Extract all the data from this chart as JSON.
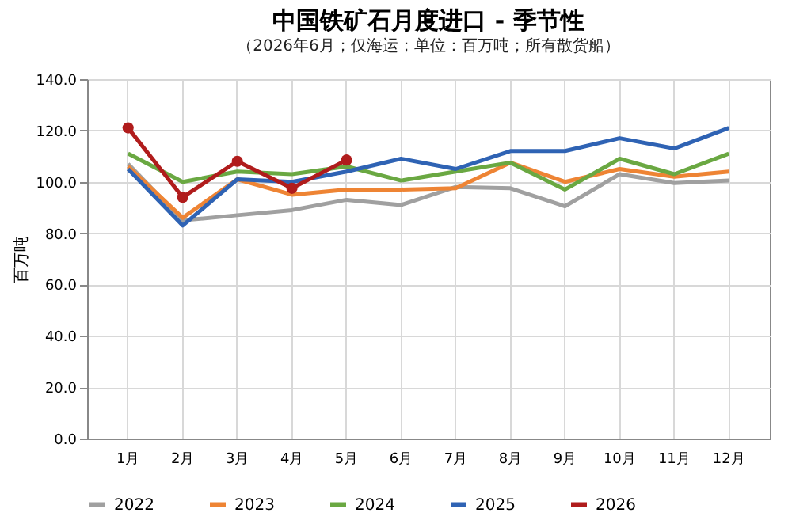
{
  "chart_data": {
    "type": "line",
    "title": "中国铁矿石月度进口 - 季节性",
    "subtitle": "（2026年6月；仅海运；单位：百万吨；所有散货船）",
    "ylabel": "百万吨",
    "categories": [
      "1月",
      "2月",
      "3月",
      "4月",
      "5月",
      "6月",
      "7月",
      "8月",
      "9月",
      "10月",
      "11月",
      "12月"
    ],
    "ylim": [
      0,
      140
    ],
    "yticks": [
      {
        "value": 0,
        "label": "0.0"
      },
      {
        "value": 20,
        "label": "20.0"
      },
      {
        "value": 40,
        "label": "40.0"
      },
      {
        "value": 60,
        "label": "60.0"
      },
      {
        "value": 80,
        "label": "80.0"
      },
      {
        "value": 100,
        "label": "100.0"
      },
      {
        "value": 120,
        "label": "120.0"
      },
      {
        "value": 140,
        "label": "140.0"
      }
    ],
    "grid": true,
    "legend": "bottom",
    "marker": "none",
    "series": [
      {
        "name": "2022",
        "color": "#a0a0a0",
        "values": [
          107,
          85,
          87,
          89,
          93,
          91,
          98,
          97.5,
          90.5,
          103,
          99.5,
          100.5
        ]
      },
      {
        "name": "2023",
        "color": "#ee8434",
        "values": [
          106,
          86,
          101,
          95,
          97,
          97,
          97.5,
          107.5,
          100,
          105,
          102,
          104
        ]
      },
      {
        "name": "2024",
        "color": "#6aa842",
        "values": [
          111,
          100,
          104,
          103,
          106,
          100.5,
          104,
          107.5,
          97,
          109,
          103,
          111
        ]
      },
      {
        "name": "2025",
        "color": "#2f63b4",
        "values": [
          105,
          83,
          101,
          100,
          104,
          109,
          105,
          112,
          112,
          117,
          113,
          121
        ]
      },
      {
        "name": "2026",
        "color": "#b01c1c",
        "marker": "circle",
        "values": [
          121,
          94,
          108,
          97.5,
          108.5,
          null,
          null,
          null,
          null,
          null,
          null,
          null
        ]
      }
    ]
  }
}
